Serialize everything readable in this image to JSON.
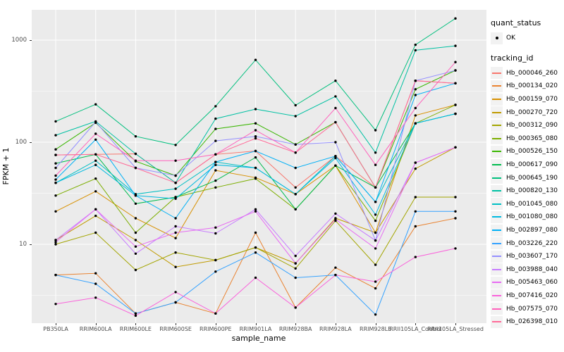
{
  "chart_data": {
    "type": "line",
    "xlabel": "sample_name",
    "ylabel": "FPKM + 1",
    "y_scale": "log10",
    "y_ticks": [
      10,
      100,
      1000
    ],
    "y_minor_ticks": [
      3.162,
      31.62,
      316.2
    ],
    "ylim": [
      1.69,
      1980
    ],
    "grid": "white-on-grey",
    "legend_position": "right",
    "point_color": "#000000",
    "categories": [
      "PB350LA",
      "RRIM600LA",
      "RRIM600LE",
      "RRIM600SE",
      "RRIM600PE",
      "RRIM901LA",
      "RRIM928BA",
      "RRIM928LA",
      "RRIM928LE",
      "RRII105LA_Control",
      "RRII105LA_Stressed"
    ],
    "series": [
      {
        "name": "Hb_000046_260",
        "color": "#F8766D",
        "values": [
          75,
          76,
          77,
          40,
          76,
          82,
          36,
          73,
          36,
          400,
          378
        ]
      },
      {
        "name": "Hb_000134_020",
        "color": "#EA8331",
        "values": [
          5,
          5.2,
          2.1,
          2.7,
          2.1,
          13,
          2.4,
          5.9,
          3.7,
          15,
          18
        ]
      },
      {
        "name": "Hb_000159_070",
        "color": "#D89000",
        "values": [
          21,
          33,
          18,
          11.5,
          53,
          45,
          31,
          59,
          13,
          183,
          232
        ]
      },
      {
        "name": "Hb_000270_720",
        "color": "#C09B00",
        "values": [
          11,
          19,
          11,
          6,
          7,
          9.3,
          6.5,
          18,
          13,
          55,
          89
        ]
      },
      {
        "name": "Hb_000312_090",
        "color": "#A3A500",
        "values": [
          10,
          13,
          5.6,
          8.3,
          7,
          9.3,
          5.8,
          17,
          6.3,
          29,
          29
        ]
      },
      {
        "name": "Hb_000365_080",
        "color": "#7CAE00",
        "values": [
          30,
          44,
          13,
          29,
          36,
          44,
          22,
          59,
          17,
          153,
          232
        ]
      },
      {
        "name": "Hb_000526_150",
        "color": "#39B600",
        "values": [
          85,
          155,
          65,
          47,
          135,
          153,
          95,
          157,
          36,
          330,
          505
        ]
      },
      {
        "name": "Hb_000617_090",
        "color": "#00BB4E",
        "values": [
          62,
          76,
          25,
          29,
          42,
          71,
          22,
          59,
          36,
          153,
          190
        ]
      },
      {
        "name": "Hb_000645_190",
        "color": "#00BF7D",
        "values": [
          160,
          235,
          114,
          94,
          225,
          640,
          230,
          400,
          131,
          900,
          1630
        ]
      },
      {
        "name": "Hb_000820_130",
        "color": "#00C1A3",
        "values": [
          117,
          160,
          77,
          40,
          170,
          211,
          180,
          281,
          79,
          795,
          880
        ]
      },
      {
        "name": "Hb_001045_080",
        "color": "#00BFC4",
        "values": [
          40,
          66,
          31,
          35,
          64,
          56,
          31,
          73,
          26,
          153,
          190
        ]
      },
      {
        "name": "Hb_001080_080",
        "color": "#00BAE0",
        "values": [
          40,
          60,
          30,
          28,
          60,
          56,
          31,
          70,
          19.5,
          153,
          190
        ]
      },
      {
        "name": "Hb_002897_080",
        "color": "#00B0F6",
        "values": [
          43,
          106,
          30,
          18,
          64,
          82,
          56,
          73,
          26,
          290,
          378
        ]
      },
      {
        "name": "Hb_003226_220",
        "color": "#35A2FF",
        "values": [
          5,
          4.1,
          2.1,
          2.7,
          5.4,
          8.3,
          4.7,
          5,
          2.05,
          21,
          21
        ]
      },
      {
        "name": "Hb_003607_170",
        "color": "#9590FF",
        "values": [
          56,
          158,
          56,
          47,
          103,
          114,
          95,
          100,
          10.9,
          400,
          505
        ]
      },
      {
        "name": "Hb_003988_040",
        "color": "#C77CFF",
        "values": [
          11,
          22,
          8.1,
          15,
          12.8,
          22,
          7.7,
          20,
          10.9,
          63,
          89
        ]
      },
      {
        "name": "Hb_005463_060",
        "color": "#E76BF3",
        "values": [
          10.5,
          22,
          9.5,
          13,
          14.6,
          21,
          6.5,
          17.6,
          9.1,
          63,
          89
        ]
      },
      {
        "name": "Hb_007416_020",
        "color": "#FA62DB",
        "values": [
          2.6,
          3,
          2,
          3.4,
          2.1,
          4.7,
          2.4,
          5,
          4.3,
          7.5,
          9.1
        ]
      },
      {
        "name": "Hb_007575_070",
        "color": "#FF62BC",
        "values": [
          47,
          121,
          66,
          66,
          76,
          131,
          79,
          216,
          60,
          216,
          609
        ]
      },
      {
        "name": "Hb_026398_010",
        "color": "#FF6A98",
        "values": [
          75,
          76,
          56,
          40,
          76,
          109,
          79,
          157,
          36,
          400,
          378
        ]
      }
    ]
  },
  "legend": {
    "quant_status_title": "quant_status",
    "quant_status_items": [
      {
        "label": "OK",
        "marker": "point",
        "color": "#000000"
      }
    ],
    "tracking_id_title": "tracking_id"
  },
  "panel": {
    "bg": "#EBEBEB",
    "grid_color": "#FFFFFF",
    "tick_text_color": "#4D4D4D"
  }
}
